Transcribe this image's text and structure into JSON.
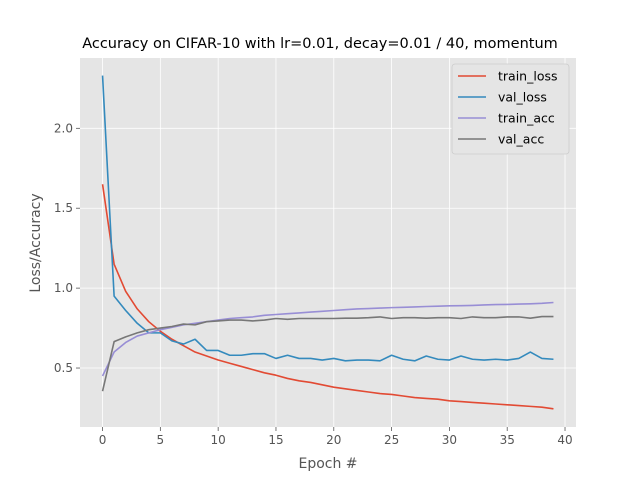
{
  "chart_data": {
    "type": "line",
    "title": "Accuracy on CIFAR-10 with lr=0.01, decay=0.01 / 40, momentum",
    "xlabel": "Epoch #",
    "ylabel": "Loss/Accuracy",
    "xlim": [
      -1.95,
      40.95
    ],
    "ylim": [
      0.131,
      2.44
    ],
    "xticks": [
      0,
      5,
      10,
      15,
      20,
      25,
      30,
      35,
      40
    ],
    "xtick_labels": [
      "0",
      "5",
      "10",
      "15",
      "20",
      "25",
      "30",
      "35",
      "40"
    ],
    "yticks": [
      0.5,
      1.0,
      1.5,
      2.0
    ],
    "ytick_labels": [
      "0.5",
      "1.0",
      "1.5",
      "2.0"
    ],
    "grid": true,
    "legend_position": "top-right",
    "x": [
      0,
      1,
      2,
      3,
      4,
      5,
      6,
      7,
      8,
      9,
      10,
      11,
      12,
      13,
      14,
      15,
      16,
      17,
      18,
      19,
      20,
      21,
      22,
      23,
      24,
      25,
      26,
      27,
      28,
      29,
      30,
      31,
      32,
      33,
      34,
      35,
      36,
      37,
      38,
      39
    ],
    "series": [
      {
        "name": "train_loss",
        "color": "#E24A33",
        "values": [
          1.65,
          1.15,
          0.98,
          0.87,
          0.79,
          0.73,
          0.68,
          0.64,
          0.6,
          0.575,
          0.55,
          0.53,
          0.51,
          0.49,
          0.47,
          0.455,
          0.435,
          0.42,
          0.41,
          0.395,
          0.38,
          0.37,
          0.36,
          0.35,
          0.34,
          0.335,
          0.325,
          0.315,
          0.31,
          0.305,
          0.295,
          0.29,
          0.285,
          0.28,
          0.275,
          0.27,
          0.265,
          0.26,
          0.255,
          0.245
        ]
      },
      {
        "name": "val_loss",
        "color": "#348ABD",
        "values": [
          2.33,
          0.95,
          0.86,
          0.78,
          0.72,
          0.72,
          0.67,
          0.65,
          0.68,
          0.61,
          0.61,
          0.58,
          0.58,
          0.59,
          0.59,
          0.56,
          0.58,
          0.56,
          0.56,
          0.55,
          0.56,
          0.545,
          0.55,
          0.55,
          0.545,
          0.58,
          0.555,
          0.545,
          0.575,
          0.555,
          0.55,
          0.575,
          0.555,
          0.55,
          0.555,
          0.55,
          0.56,
          0.6,
          0.56,
          0.555
        ]
      },
      {
        "name": "train_acc",
        "color": "#988ED5",
        "values": [
          0.45,
          0.6,
          0.66,
          0.7,
          0.72,
          0.74,
          0.755,
          0.77,
          0.78,
          0.79,
          0.8,
          0.81,
          0.815,
          0.82,
          0.83,
          0.835,
          0.84,
          0.845,
          0.85,
          0.855,
          0.86,
          0.865,
          0.87,
          0.872,
          0.875,
          0.878,
          0.88,
          0.882,
          0.885,
          0.887,
          0.889,
          0.89,
          0.892,
          0.895,
          0.897,
          0.898,
          0.9,
          0.902,
          0.905,
          0.91
        ]
      },
      {
        "name": "val_acc",
        "color": "#777777",
        "values": [
          0.355,
          0.665,
          0.695,
          0.72,
          0.74,
          0.75,
          0.76,
          0.775,
          0.77,
          0.79,
          0.795,
          0.8,
          0.8,
          0.795,
          0.8,
          0.81,
          0.805,
          0.81,
          0.81,
          0.81,
          0.81,
          0.812,
          0.812,
          0.815,
          0.82,
          0.81,
          0.815,
          0.815,
          0.812,
          0.815,
          0.815,
          0.81,
          0.82,
          0.815,
          0.815,
          0.82,
          0.82,
          0.812,
          0.822,
          0.822
        ]
      }
    ]
  }
}
